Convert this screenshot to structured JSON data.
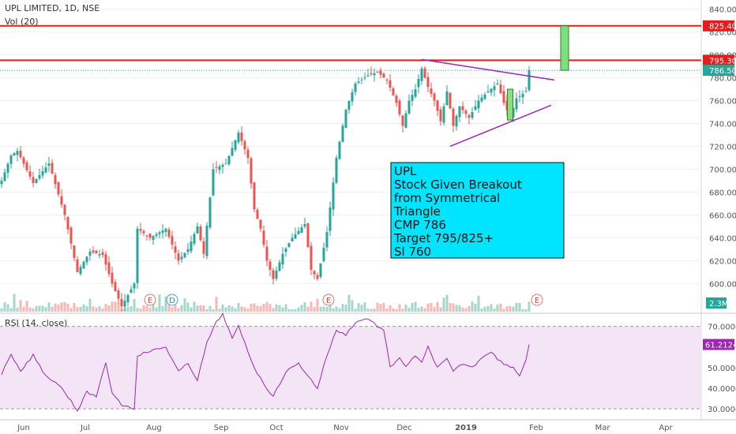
{
  "header": {
    "symbol_line": "UPL LIMITED, 1D, NSE",
    "vol_label": "Vol (20)",
    "rsi_label": "RSI (14, close)"
  },
  "colors": {
    "up": "#26a69a",
    "down": "#ef5350",
    "level_line": "#e31c1c",
    "trendline": "#9c27b0",
    "rsi_line": "#9c27b0",
    "rsi_band": "#f3e5f5",
    "note_bg": "#00e5ff",
    "last_price": "#26a69a"
  },
  "chart_data": [
    {
      "type": "candlestick",
      "title": "UPL LIMITED, 1D, NSE",
      "x_tick_labels": [
        "Jun",
        "Jul",
        "Aug",
        "Sep",
        "Oct",
        "Nov",
        "Dec",
        "2019",
        "Feb",
        "Mar",
        "Apr"
      ],
      "ylim": [
        574,
        848
      ],
      "y_ticks": [
        600,
        620,
        640,
        660,
        680,
        700,
        720,
        740,
        760,
        780,
        800,
        820,
        840
      ],
      "y_tick_labels": [
        "600.00",
        "620.00",
        "640.00",
        "660.00",
        "680.00",
        "700.00",
        "720.00",
        "740.00",
        "760.00",
        "780.00",
        "800.00",
        "820.00",
        "840.00"
      ],
      "waypoints": [
        {
          "i": 0,
          "v": 690
        },
        {
          "i": 3,
          "v": 712
        },
        {
          "i": 5,
          "v": 716
        },
        {
          "i": 10,
          "v": 688
        },
        {
          "i": 15,
          "v": 705
        },
        {
          "i": 20,
          "v": 660
        },
        {
          "i": 24,
          "v": 610
        },
        {
          "i": 28,
          "v": 628
        },
        {
          "i": 32,
          "v": 625
        },
        {
          "i": 35,
          "v": 600
        },
        {
          "i": 38,
          "v": 580
        },
        {
          "i": 42,
          "v": 600
        },
        {
          "i": 43,
          "v": 648
        },
        {
          "i": 47,
          "v": 640
        },
        {
          "i": 52,
          "v": 648
        },
        {
          "i": 56,
          "v": 620
        },
        {
          "i": 59,
          "v": 630
        },
        {
          "i": 62,
          "v": 650
        },
        {
          "i": 64,
          "v": 626
        },
        {
          "i": 67,
          "v": 700
        },
        {
          "i": 71,
          "v": 705
        },
        {
          "i": 75,
          "v": 732
        },
        {
          "i": 78,
          "v": 710
        },
        {
          "i": 80,
          "v": 665
        },
        {
          "i": 82,
          "v": 648
        },
        {
          "i": 84,
          "v": 620
        },
        {
          "i": 86,
          "v": 604
        },
        {
          "i": 89,
          "v": 626
        },
        {
          "i": 92,
          "v": 640
        },
        {
          "i": 96,
          "v": 652
        },
        {
          "i": 98,
          "v": 612
        },
        {
          "i": 100,
          "v": 604
        },
        {
          "i": 103,
          "v": 645
        },
        {
          "i": 106,
          "v": 710
        },
        {
          "i": 109,
          "v": 752
        },
        {
          "i": 112,
          "v": 775
        },
        {
          "i": 116,
          "v": 782
        },
        {
          "i": 119,
          "v": 785
        },
        {
          "i": 122,
          "v": 778
        },
        {
          "i": 125,
          "v": 758
        },
        {
          "i": 127,
          "v": 738
        },
        {
          "i": 129,
          "v": 760
        },
        {
          "i": 131,
          "v": 770
        },
        {
          "i": 133,
          "v": 788
        },
        {
          "i": 135,
          "v": 772
        },
        {
          "i": 137,
          "v": 760
        },
        {
          "i": 139,
          "v": 742
        },
        {
          "i": 141,
          "v": 768
        },
        {
          "i": 143,
          "v": 738
        },
        {
          "i": 145,
          "v": 755
        },
        {
          "i": 148,
          "v": 745
        },
        {
          "i": 151,
          "v": 760
        },
        {
          "i": 154,
          "v": 768
        },
        {
          "i": 157,
          "v": 775
        },
        {
          "i": 159,
          "v": 758
        },
        {
          "i": 161,
          "v": 745
        },
        {
          "i": 163,
          "v": 762
        },
        {
          "i": 166,
          "v": 768
        },
        {
          "i": 167,
          "v": 786.5
        }
      ],
      "last_close": 786.5,
      "levels": [
        825.4,
        795.3
      ],
      "level_labels": [
        "825.40",
        "795.30"
      ],
      "last_price_label": "786.50",
      "target_bar": {
        "low": 786.5,
        "high": 825.4
      },
      "highlight_candle": {
        "low": 743,
        "high": 770
      },
      "trendline_upper": {
        "from": 796,
        "to": 778
      },
      "trendline_lower": {
        "from": 720,
        "to": 756
      },
      "events": [
        {
          "letter": "E",
          "kind": "earnings"
        },
        {
          "letter": "D",
          "kind": "dividend"
        },
        {
          "letter": "E",
          "kind": "earnings"
        },
        {
          "letter": "E",
          "kind": "earnings"
        }
      ]
    },
    {
      "type": "bar",
      "title": "Vol (20)",
      "last_value_label": "2.3M"
    },
    {
      "type": "line",
      "title": "RSI (14, close)",
      "ylim": [
        25,
        76
      ],
      "y_ticks": [
        30,
        40,
        50,
        60,
        70
      ],
      "y_tick_labels": [
        "30.0000",
        "40.0000",
        "50.0000",
        "60.0000",
        "70.0000"
      ],
      "band": [
        30,
        70
      ],
      "last_value": 61.2124,
      "last_value_label": "61.2124",
      "waypoints": [
        {
          "i": 0,
          "v": 47
        },
        {
          "i": 3,
          "v": 56
        },
        {
          "i": 6,
          "v": 48
        },
        {
          "i": 10,
          "v": 56
        },
        {
          "i": 14,
          "v": 46
        },
        {
          "i": 18,
          "v": 42
        },
        {
          "i": 22,
          "v": 34
        },
        {
          "i": 24,
          "v": 29
        },
        {
          "i": 27,
          "v": 38
        },
        {
          "i": 30,
          "v": 36
        },
        {
          "i": 33,
          "v": 52
        },
        {
          "i": 35,
          "v": 38
        },
        {
          "i": 38,
          "v": 32
        },
        {
          "i": 42,
          "v": 30
        },
        {
          "i": 43,
          "v": 56
        },
        {
          "i": 47,
          "v": 58
        },
        {
          "i": 52,
          "v": 60
        },
        {
          "i": 56,
          "v": 48
        },
        {
          "i": 59,
          "v": 52
        },
        {
          "i": 62,
          "v": 44
        },
        {
          "i": 65,
          "v": 62
        },
        {
          "i": 68,
          "v": 72
        },
        {
          "i": 70,
          "v": 76
        },
        {
          "i": 73,
          "v": 64
        },
        {
          "i": 75,
          "v": 70
        },
        {
          "i": 78,
          "v": 58
        },
        {
          "i": 80,
          "v": 50
        },
        {
          "i": 83,
          "v": 42
        },
        {
          "i": 86,
          "v": 36
        },
        {
          "i": 90,
          "v": 48
        },
        {
          "i": 94,
          "v": 52
        },
        {
          "i": 98,
          "v": 44
        },
        {
          "i": 100,
          "v": 40
        },
        {
          "i": 103,
          "v": 56
        },
        {
          "i": 106,
          "v": 68
        },
        {
          "i": 109,
          "v": 66
        },
        {
          "i": 112,
          "v": 72
        },
        {
          "i": 116,
          "v": 74
        },
        {
          "i": 119,
          "v": 70
        },
        {
          "i": 121,
          "v": 68
        },
        {
          "i": 123,
          "v": 50
        },
        {
          "i": 126,
          "v": 55
        },
        {
          "i": 128,
          "v": 50
        },
        {
          "i": 131,
          "v": 56
        },
        {
          "i": 133,
          "v": 52
        },
        {
          "i": 135,
          "v": 60
        },
        {
          "i": 138,
          "v": 50
        },
        {
          "i": 141,
          "v": 54
        },
        {
          "i": 143,
          "v": 48
        },
        {
          "i": 146,
          "v": 52
        },
        {
          "i": 149,
          "v": 50
        },
        {
          "i": 152,
          "v": 55
        },
        {
          "i": 155,
          "v": 58
        },
        {
          "i": 157,
          "v": 54
        },
        {
          "i": 159,
          "v": 52
        },
        {
          "i": 162,
          "v": 50
        },
        {
          "i": 164,
          "v": 46
        },
        {
          "i": 166,
          "v": 54
        },
        {
          "i": 167,
          "v": 61.2
        }
      ]
    }
  ],
  "annotation_note": {
    "lines": [
      "UPL",
      "Stock Given Breakout",
      "from Symmetrical",
      "Triangle",
      "CMP 786",
      "Target 795/825+",
      "Sl 760"
    ]
  }
}
